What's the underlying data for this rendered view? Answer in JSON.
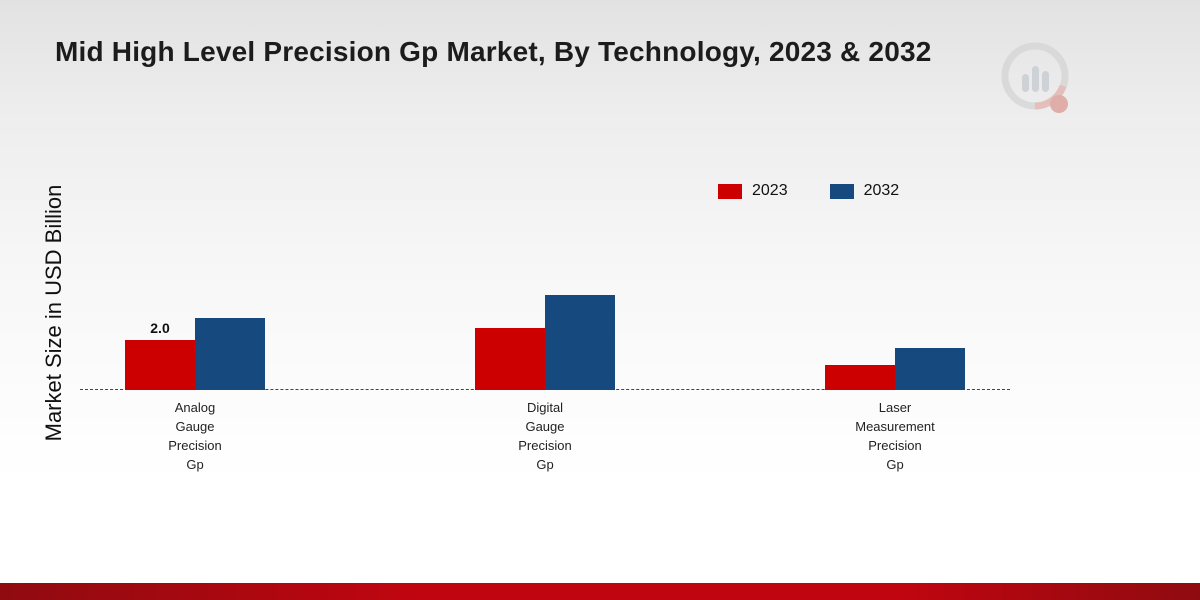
{
  "title": "Mid High Level Precision Gp Market, By Technology, 2023 & 2032",
  "ylabel": "Market Size in USD Billion",
  "colors": {
    "series_2023": "#cc0000",
    "series_2032": "#16497e",
    "bottom_band": "#c00510",
    "background_top": "#e2e2e2",
    "background_bottom": "#ffffff"
  },
  "chart_data": {
    "type": "bar",
    "categories": [
      "Analog Gauge Precision Gp",
      "Digital Gauge Precision Gp",
      "Laser Measurement Precision Gp"
    ],
    "series": [
      {
        "name": "2023",
        "color": "#cc0000",
        "values": [
          2.0,
          2.5,
          1.0
        ]
      },
      {
        "name": "2032",
        "color": "#16497e",
        "values": [
          2.9,
          3.8,
          1.7
        ]
      }
    ],
    "annotations": [
      {
        "series": "2023",
        "category_index": 0,
        "text": "2.0"
      }
    ],
    "title": "Mid High Level Precision Gp Market, By Technology, 2023 & 2032",
    "xlabel": "",
    "ylabel": "Market Size in USD Billion",
    "ylim": [
      0,
      4.5
    ],
    "grid": false,
    "legend_position": "top-right",
    "baseline_style": "dashed"
  }
}
